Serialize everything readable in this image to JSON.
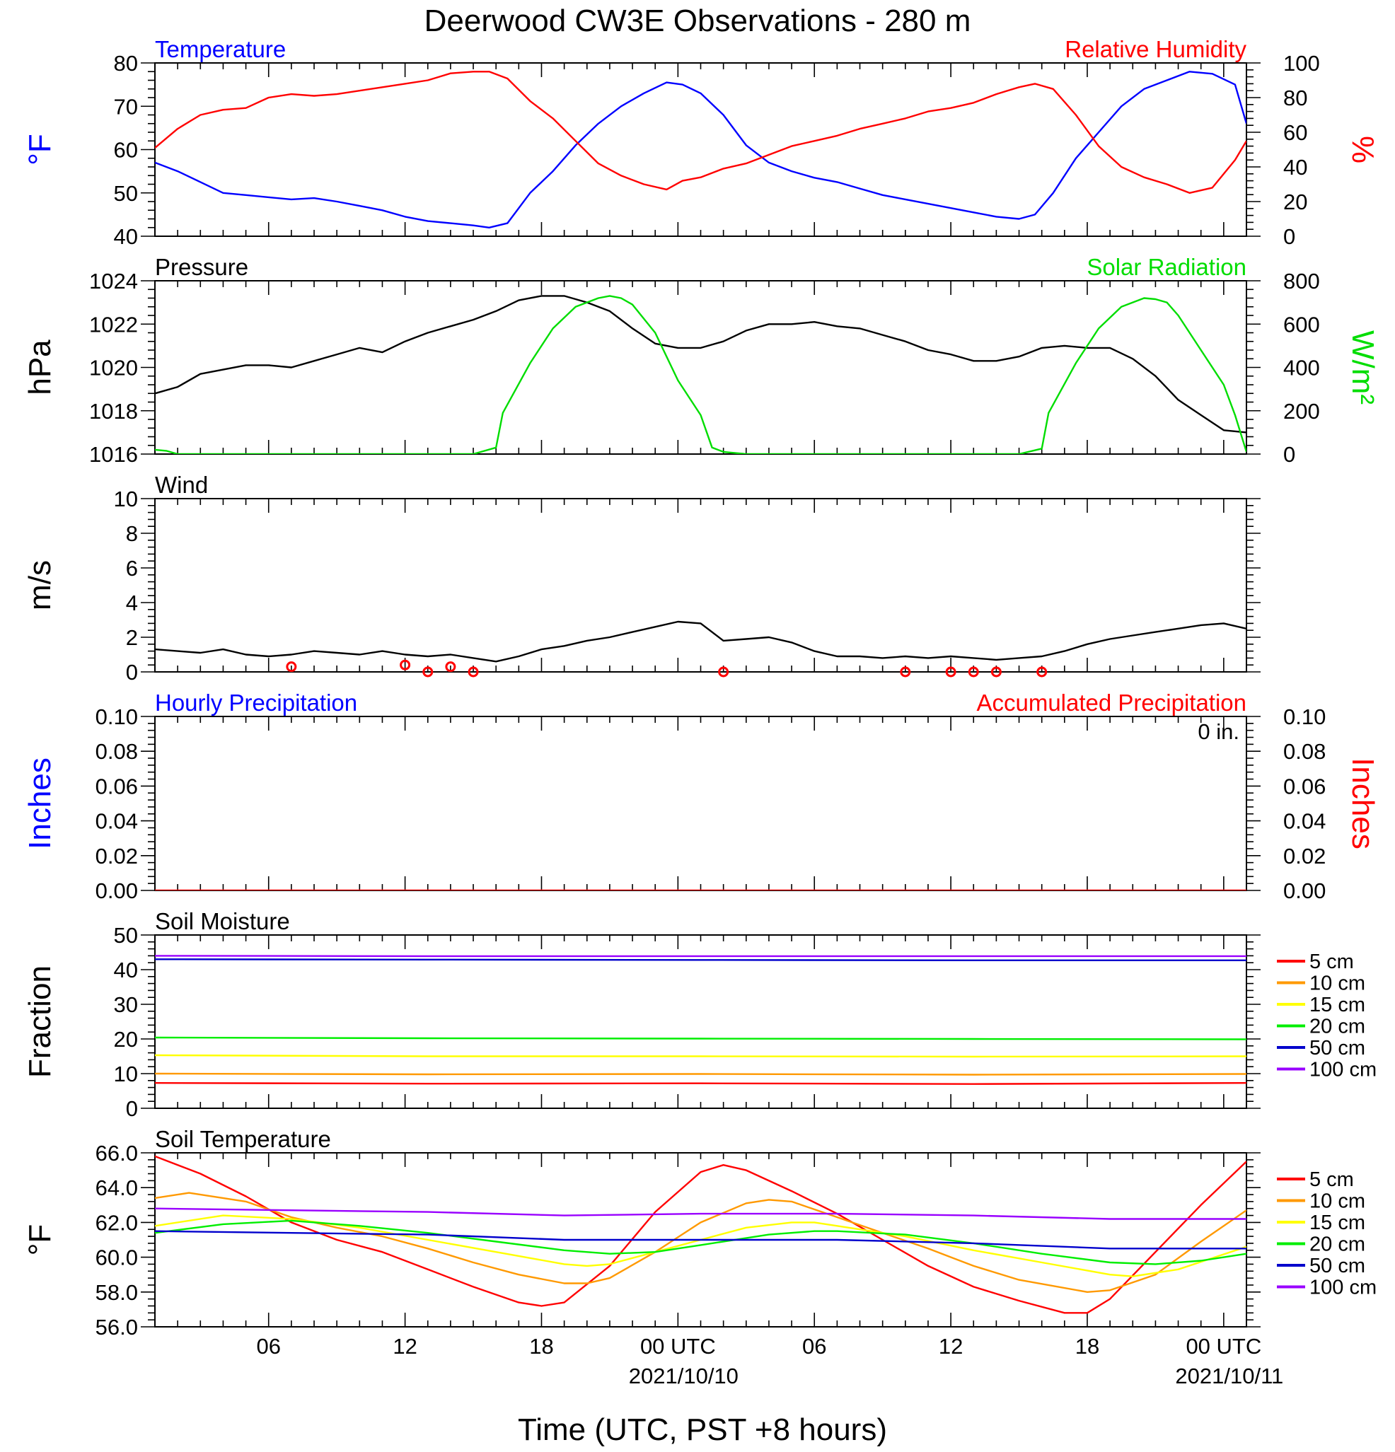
{
  "chart_data": [
    {
      "id": "temp_rh",
      "type": "line",
      "title": "Deerwood CW3E Observations - 280 m",
      "left_label": "Temperature",
      "right_label": "Relative Humidity",
      "left_unit": "°F",
      "right_unit": "%",
      "ylim": [
        40,
        80
      ],
      "yticks": [
        "40",
        "50",
        "60",
        "70",
        "80"
      ],
      "y2lim": [
        0,
        100
      ],
      "y2ticks": [
        "0",
        "20",
        "40",
        "60",
        "80",
        "100"
      ],
      "colors": {
        "left": "#0000ff",
        "right": "#ff0000"
      },
      "series": [
        {
          "axis": "left",
          "color": "#0000ff",
          "x": [
            0,
            1,
            2,
            3,
            4,
            5,
            6,
            7,
            8,
            9,
            10,
            11,
            12,
            13,
            14,
            14.7,
            15.5,
            16.5,
            17.5,
            18.5,
            19.5,
            20.5,
            21.5,
            22.5,
            23.2,
            24,
            25,
            26,
            27,
            28,
            29,
            30,
            31,
            32,
            33,
            34,
            35,
            36,
            37,
            38,
            38.7,
            39.5,
            40.5,
            41.5,
            42.5,
            43.5,
            44.5,
            45.5,
            46.5,
            47.5,
            48
          ],
          "y": [
            57,
            55,
            52.5,
            50,
            49.5,
            49,
            48.5,
            48.8,
            48,
            47,
            46,
            44.5,
            43.5,
            43,
            42.5,
            42,
            43,
            50,
            55,
            61,
            66,
            70,
            73,
            75.5,
            75,
            73,
            68,
            61,
            57,
            55,
            53.5,
            52.5,
            51,
            49.5,
            48.5,
            47.5,
            46.5,
            45.5,
            44.5,
            44,
            45,
            50,
            58,
            64,
            70,
            74,
            76,
            78,
            77.5,
            75,
            66
          ]
        },
        {
          "axis": "right",
          "color": "#ff0000",
          "x": [
            0,
            1,
            2,
            3,
            4,
            5,
            6,
            7,
            8,
            9,
            10,
            11,
            12,
            13,
            14,
            14.7,
            15.5,
            16.5,
            17.5,
            18.5,
            19.5,
            20.5,
            21.5,
            22.5,
            23.2,
            24,
            25,
            26,
            27,
            28,
            29,
            30,
            31,
            32,
            33,
            34,
            35,
            36,
            37,
            38,
            38.7,
            39.5,
            40.5,
            41.5,
            42.5,
            43.5,
            44.5,
            45.5,
            46.5,
            47.5,
            48
          ],
          "y": [
            51,
            62,
            70,
            73,
            74,
            80,
            82,
            81,
            82,
            84,
            86,
            88,
            90,
            94,
            95,
            95,
            91,
            78,
            68,
            55,
            42,
            35,
            30,
            27,
            32,
            34,
            39,
            42,
            47,
            52,
            55,
            58,
            62,
            65,
            68,
            72,
            74,
            77,
            82,
            86,
            88,
            85,
            70,
            52,
            40,
            34,
            30,
            25,
            28,
            44,
            55
          ]
        }
      ]
    },
    {
      "id": "pressure_solar",
      "type": "line",
      "left_label": "Pressure",
      "right_label": "Solar Radiation",
      "left_unit": "hPa",
      "right_unit": "W/m²",
      "ylim": [
        1016,
        1024
      ],
      "yticks": [
        "1016",
        "1018",
        "1020",
        "1022",
        "1024"
      ],
      "y2lim": [
        0,
        800
      ],
      "y2ticks": [
        "0",
        "200",
        "400",
        "600",
        "800"
      ],
      "colors": {
        "left": "#000000",
        "right": "#00dd00"
      },
      "series": [
        {
          "axis": "left",
          "color": "#000000",
          "x": [
            0,
            1,
            2,
            3,
            4,
            5,
            6,
            7,
            8,
            9,
            10,
            11,
            12,
            13,
            14,
            15,
            16,
            17,
            18,
            19,
            20,
            21,
            22,
            23,
            24,
            25,
            26,
            27,
            28,
            29,
            30,
            31,
            32,
            33,
            34,
            35,
            36,
            37,
            38,
            39,
            40,
            41,
            42,
            43,
            44,
            45,
            46,
            47,
            48
          ],
          "y": [
            1018.8,
            1019.1,
            1019.7,
            1019.9,
            1020.1,
            1020.1,
            1020.0,
            1020.3,
            1020.6,
            1020.9,
            1020.7,
            1021.2,
            1021.6,
            1021.9,
            1022.2,
            1022.6,
            1023.1,
            1023.3,
            1023.3,
            1023.0,
            1022.6,
            1021.8,
            1021.1,
            1020.9,
            1020.9,
            1021.2,
            1021.7,
            1022.0,
            1022.0,
            1022.1,
            1021.9,
            1021.8,
            1021.5,
            1021.2,
            1020.8,
            1020.6,
            1020.3,
            1020.3,
            1020.5,
            1020.9,
            1021.0,
            1020.9,
            1020.9,
            1020.4,
            1019.6,
            1018.5,
            1017.8,
            1017.1,
            1017.0
          ]
        },
        {
          "axis": "right",
          "color": "#00dd00",
          "x": [
            0,
            0.5,
            1,
            14,
            15,
            15.3,
            16.5,
            17.5,
            18.5,
            19.5,
            20,
            20.5,
            21,
            22,
            23,
            24,
            24.5,
            25,
            26,
            38,
            39,
            39.3,
            40.5,
            41.5,
            42.5,
            43.5,
            44,
            44.5,
            45,
            46,
            47,
            47.5,
            48
          ],
          "y": [
            20,
            15,
            0,
            0,
            30,
            190,
            420,
            580,
            680,
            720,
            730,
            720,
            690,
            560,
            340,
            180,
            30,
            10,
            0,
            0,
            25,
            190,
            420,
            580,
            680,
            720,
            715,
            700,
            640,
            480,
            320,
            180,
            10
          ]
        }
      ]
    },
    {
      "id": "wind",
      "type": "line",
      "left_label": "Wind",
      "left_unit": "m/s",
      "ylim": [
        0,
        10
      ],
      "yticks": [
        "0",
        "2",
        "4",
        "6",
        "8",
        "10"
      ],
      "colors": {
        "speed": "#000000",
        "barb": "#ff0000"
      },
      "series": [
        {
          "name": "speed",
          "color": "#000000",
          "x": [
            0,
            1,
            2,
            3,
            4,
            5,
            6,
            7,
            8,
            9,
            10,
            11,
            12,
            13,
            14,
            15,
            16,
            17,
            18,
            19,
            20,
            21,
            22,
            23,
            24,
            25,
            26,
            27,
            28,
            29,
            30,
            31,
            32,
            33,
            34,
            35,
            36,
            37,
            38,
            39,
            40,
            41,
            42,
            43,
            44,
            45,
            46,
            47,
            48
          ],
          "y": [
            1.3,
            1.2,
            1.1,
            1.3,
            1.0,
            0.9,
            1.0,
            1.2,
            1.1,
            1.0,
            1.2,
            1.0,
            0.9,
            1.0,
            0.8,
            0.6,
            0.9,
            1.3,
            1.5,
            1.8,
            2.0,
            2.3,
            2.6,
            2.9,
            2.8,
            1.8,
            1.9,
            2.0,
            1.7,
            1.2,
            0.9,
            0.9,
            0.8,
            0.9,
            0.8,
            0.9,
            0.8,
            0.7,
            0.8,
            0.9,
            1.2,
            1.6,
            1.9,
            2.1,
            2.3,
            2.5,
            2.7,
            2.8,
            2.5
          ]
        },
        {
          "name": "calm",
          "color": "#ff0000",
          "x": [
            6,
            11,
            12,
            13,
            14,
            25,
            33,
            35,
            36,
            37,
            39
          ],
          "y": [
            0.3,
            0.4,
            0,
            0.3,
            0,
            0,
            0,
            0,
            0,
            0,
            0
          ]
        }
      ]
    },
    {
      "id": "precip",
      "type": "line",
      "left_label": "Hourly Precipitation",
      "right_label": "Accumulated Precipitation",
      "left_unit": "Inches",
      "right_unit": "Inches",
      "accum_note": "0 in.",
      "ylim": [
        0,
        0.1
      ],
      "yticks": [
        "0.00",
        "0.02",
        "0.04",
        "0.06",
        "0.08",
        "0.10"
      ],
      "y2lim": [
        0,
        0.1
      ],
      "y2ticks": [
        "0.00",
        "0.02",
        "0.04",
        "0.06",
        "0.08",
        "0.10"
      ],
      "colors": {
        "left": "#0000ff",
        "right": "#ff0000"
      },
      "series": [
        {
          "axis": "right",
          "color": "#ff0000",
          "x": [
            0,
            48
          ],
          "y": [
            0,
            0
          ]
        }
      ]
    },
    {
      "id": "soil_moisture",
      "type": "line",
      "left_label": "Soil Moisture",
      "left_unit": "Fraction",
      "ylim": [
        0,
        50
      ],
      "yticks": [
        "0",
        "10",
        "20",
        "30",
        "40",
        "50"
      ],
      "legend": [
        "5 cm",
        "10 cm",
        "15 cm",
        "20 cm",
        "50 cm",
        "100 cm"
      ],
      "colors": [
        "#ff0000",
        "#ff9900",
        "#ffff00",
        "#00ee00",
        "#0000cc",
        "#9900ff"
      ],
      "series": [
        {
          "color": "#ff0000",
          "x": [
            0,
            12,
            24,
            36,
            48
          ],
          "y": [
            7.3,
            7.1,
            7.2,
            7.0,
            7.3
          ]
        },
        {
          "color": "#ff9900",
          "x": [
            0,
            12,
            24,
            36,
            48
          ],
          "y": [
            10.0,
            9.8,
            9.9,
            9.7,
            9.9
          ]
        },
        {
          "color": "#ffff00",
          "x": [
            0,
            12,
            24,
            36,
            48
          ],
          "y": [
            15.3,
            15.0,
            15.0,
            14.9,
            15.0
          ]
        },
        {
          "color": "#00ee00",
          "x": [
            0,
            12,
            24,
            36,
            48
          ],
          "y": [
            20.4,
            20.2,
            20.1,
            20.0,
            19.9
          ]
        },
        {
          "color": "#0000cc",
          "x": [
            0,
            12,
            24,
            36,
            48
          ],
          "y": [
            43.0,
            42.9,
            42.8,
            42.7,
            42.7
          ]
        },
        {
          "color": "#9900ff",
          "x": [
            0,
            12,
            24,
            36,
            48
          ],
          "y": [
            44.0,
            43.9,
            43.9,
            43.9,
            43.9
          ]
        }
      ]
    },
    {
      "id": "soil_temp",
      "type": "line",
      "left_label": "Soil Temperature",
      "left_unit": "°F",
      "ylim": [
        56,
        66
      ],
      "yticks": [
        "56.0",
        "58.0",
        "60.0",
        "62.0",
        "64.0",
        "66.0"
      ],
      "legend": [
        "5 cm",
        "10 cm",
        "15 cm",
        "20 cm",
        "50 cm",
        "100 cm"
      ],
      "colors": [
        "#ff0000",
        "#ff9900",
        "#ffff00",
        "#00ee00",
        "#0000cc",
        "#9900ff"
      ],
      "series": [
        {
          "color": "#ff0000",
          "x": [
            0,
            2,
            4,
            6,
            8,
            10,
            12,
            14,
            16,
            17,
            18,
            20,
            22,
            24,
            25,
            26,
            28,
            30,
            32,
            34,
            36,
            38,
            40,
            41,
            42,
            44,
            46,
            48
          ],
          "y": [
            65.8,
            64.8,
            63.5,
            62.0,
            61.0,
            60.3,
            59.3,
            58.3,
            57.4,
            57.2,
            57.4,
            59.5,
            62.6,
            64.9,
            65.3,
            65.0,
            63.8,
            62.5,
            61.0,
            59.5,
            58.3,
            57.5,
            56.8,
            56.8,
            57.6,
            60.3,
            63.0,
            65.5
          ]
        },
        {
          "color": "#ff9900",
          "x": [
            0,
            1.5,
            4,
            6,
            8,
            10,
            12,
            14,
            16,
            18,
            19,
            20,
            22,
            24,
            26,
            27,
            28,
            30,
            32,
            34,
            36,
            38,
            41,
            42,
            44,
            46,
            48
          ],
          "y": [
            63.4,
            63.7,
            63.2,
            62.3,
            61.7,
            61.2,
            60.5,
            59.7,
            59.0,
            58.5,
            58.5,
            58.8,
            60.3,
            62.0,
            63.1,
            63.3,
            63.2,
            62.3,
            61.4,
            60.5,
            59.5,
            58.7,
            58.0,
            58.1,
            59.0,
            60.9,
            62.7
          ]
        },
        {
          "color": "#ffff00",
          "x": [
            0,
            3,
            6,
            9,
            12,
            15,
            18,
            19,
            20,
            22,
            24,
            26,
            28,
            29,
            30,
            33,
            36,
            39,
            42,
            43,
            45,
            48
          ],
          "y": [
            61.8,
            62.4,
            62.2,
            61.7,
            61.0,
            60.3,
            59.6,
            59.5,
            59.6,
            60.3,
            61.0,
            61.7,
            62.0,
            62.0,
            61.8,
            61.2,
            60.4,
            59.7,
            59.0,
            58.9,
            59.3,
            60.6
          ]
        },
        {
          "color": "#00ee00",
          "x": [
            0,
            3,
            6,
            9,
            12,
            15,
            18,
            20,
            22,
            24,
            27,
            29,
            30,
            33,
            36,
            39,
            42,
            44,
            46,
            48
          ],
          "y": [
            61.4,
            61.9,
            62.1,
            61.8,
            61.4,
            60.9,
            60.4,
            60.2,
            60.3,
            60.7,
            61.3,
            61.5,
            61.5,
            61.3,
            60.8,
            60.2,
            59.7,
            59.6,
            59.8,
            60.2
          ]
        },
        {
          "color": "#0000cc",
          "x": [
            0,
            6,
            12,
            18,
            24,
            30,
            36,
            42,
            48
          ],
          "y": [
            61.5,
            61.4,
            61.3,
            61.0,
            61.0,
            61.0,
            60.8,
            60.5,
            60.5
          ]
        },
        {
          "color": "#9900ff",
          "x": [
            0,
            6,
            12,
            18,
            24,
            30,
            36,
            42,
            48
          ],
          "y": [
            62.8,
            62.7,
            62.6,
            62.4,
            62.5,
            62.5,
            62.4,
            62.2,
            62.2
          ]
        }
      ]
    }
  ],
  "xaxis": {
    "label": "Time (UTC, PST +8 hours)",
    "xlim": [
      0,
      48
    ],
    "major_ticks": [
      {
        "x": 5,
        "label": "06"
      },
      {
        "x": 11,
        "label": "12"
      },
      {
        "x": 17,
        "label": "18"
      },
      {
        "x": 23,
        "label": "00 UTC",
        "date": "2021/10/10"
      },
      {
        "x": 29,
        "label": "06"
      },
      {
        "x": 35,
        "label": "12"
      },
      {
        "x": 41,
        "label": "18"
      },
      {
        "x": 47,
        "label": "00 UTC",
        "date": "2021/10/11"
      }
    ]
  }
}
